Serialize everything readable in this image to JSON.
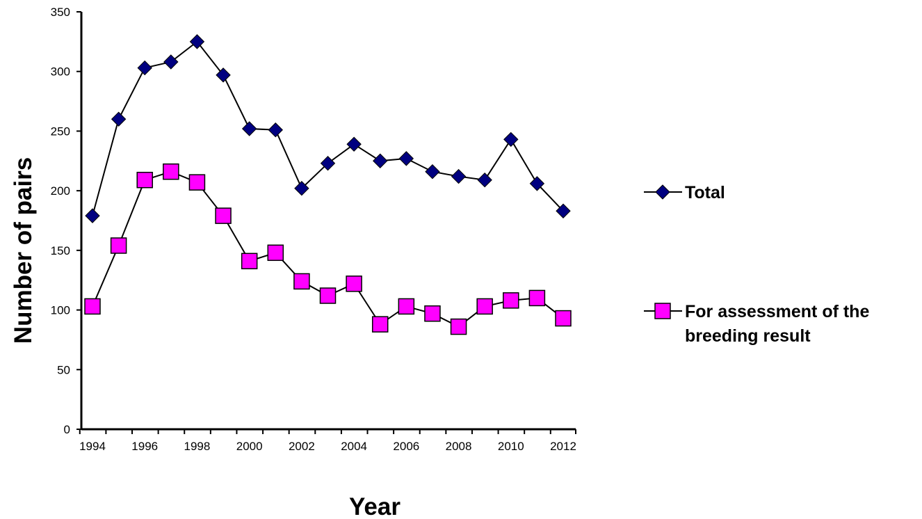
{
  "chart_data": {
    "type": "line",
    "xlabel": "Year",
    "ylabel": "Number of pairs",
    "ylim": [
      0,
      350
    ],
    "yticks": [
      0,
      50,
      100,
      150,
      200,
      250,
      300,
      350
    ],
    "xlim": [
      1994,
      2012
    ],
    "xticks": [
      1994,
      1996,
      1998,
      2000,
      2002,
      2004,
      2006,
      2008,
      2010,
      2012
    ],
    "x": [
      1994,
      1995,
      1996,
      1997,
      1998,
      1999,
      2000,
      2001,
      2002,
      2003,
      2004,
      2005,
      2006,
      2007,
      2008,
      2009,
      2010,
      2011,
      2012
    ],
    "series": [
      {
        "name": "Total",
        "marker": "diamond",
        "color": "#000080",
        "values": [
          179,
          260,
          303,
          308,
          325,
          297,
          252,
          251,
          202,
          223,
          239,
          225,
          227,
          216,
          212,
          209,
          243,
          206,
          183
        ]
      },
      {
        "name": "For assessment of the breeding result",
        "name_lines": [
          "For assessment of the",
          "breeding result"
        ],
        "marker": "square",
        "color": "#ff00ff",
        "values": [
          103,
          154,
          209,
          216,
          207,
          179,
          141,
          148,
          124,
          112,
          122,
          88,
          103,
          97,
          86,
          103,
          108,
          110,
          93
        ]
      }
    ],
    "grid": false,
    "legend_position": "right"
  }
}
